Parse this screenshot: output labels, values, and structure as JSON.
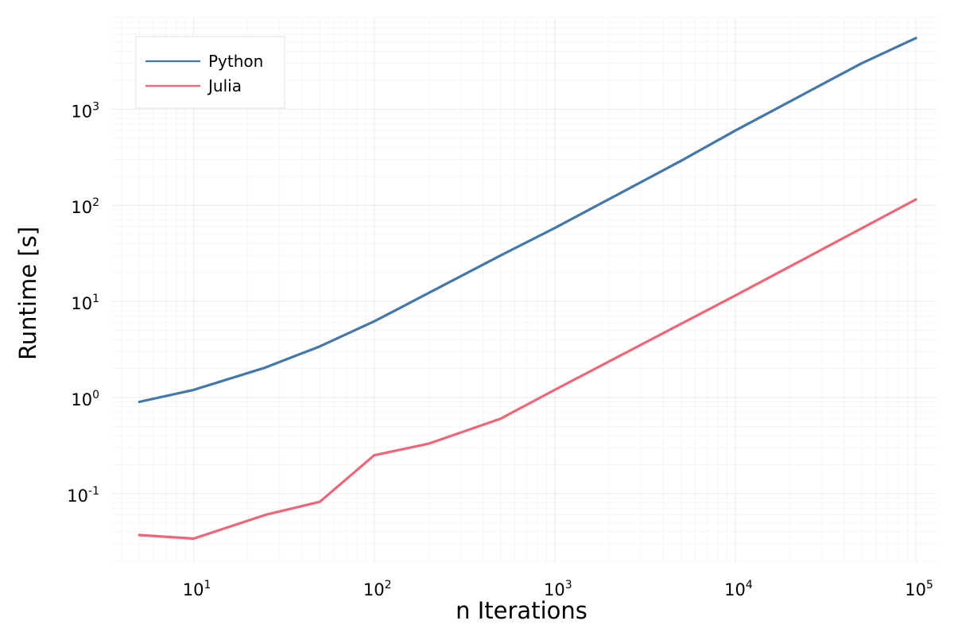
{
  "chart_data": {
    "type": "line",
    "title": "",
    "xlabel": "n Iterations",
    "ylabel": "Runtime [s]",
    "x_scale": "log",
    "y_scale": "log",
    "xlim": [
      3.5,
      130000
    ],
    "ylim": [
      0.019,
      9000
    ],
    "x_ticks": [
      {
        "base": "10",
        "exp": "1",
        "value": 10
      },
      {
        "base": "10",
        "exp": "2",
        "value": 100
      },
      {
        "base": "10",
        "exp": "3",
        "value": 1000
      },
      {
        "base": "10",
        "exp": "4",
        "value": 10000
      },
      {
        "base": "10",
        "exp": "5",
        "value": 100000
      }
    ],
    "y_ticks": [
      {
        "base": "10",
        "exp": "-1",
        "value": 0.1
      },
      {
        "base": "10",
        "exp": "0",
        "value": 1
      },
      {
        "base": "10",
        "exp": "1",
        "value": 10
      },
      {
        "base": "10",
        "exp": "2",
        "value": 100
      },
      {
        "base": "10",
        "exp": "3",
        "value": 1000
      }
    ],
    "grid": true,
    "legend": {
      "position": "top-left"
    },
    "series": [
      {
        "name": "Python",
        "color": "#4477AA",
        "x": [
          5,
          10,
          25,
          50,
          100,
          200,
          500,
          1000,
          5000,
          10000,
          50000,
          100000
        ],
        "y": [
          0.9,
          1.2,
          2.05,
          3.4,
          6.2,
          12.2,
          30,
          58,
          290,
          600,
          3000,
          5500
        ]
      },
      {
        "name": "Julia",
        "color": "#EE6677",
        "x": [
          5,
          10,
          25,
          50,
          100,
          200,
          500,
          1000,
          10000,
          100000
        ],
        "y": [
          0.037,
          0.034,
          0.06,
          0.082,
          0.25,
          0.33,
          0.6,
          1.2,
          11.5,
          115
        ]
      }
    ]
  }
}
